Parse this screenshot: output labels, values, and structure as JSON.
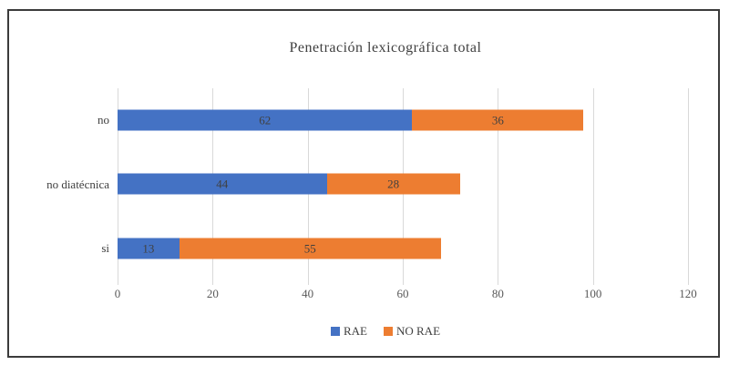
{
  "frame": {
    "border_color": "#3b3b3b",
    "background": "#ffffff"
  },
  "chart_data": {
    "type": "bar",
    "orientation": "horizontal",
    "stacked": true,
    "title": "Penetración lexicográfica total",
    "categories": [
      "no",
      "no diatécnica",
      "si"
    ],
    "series": [
      {
        "name": "RAE",
        "color": "#4472C4",
        "values": [
          62,
          44,
          13
        ]
      },
      {
        "name": "NO RAE",
        "color": "#ED7D31",
        "values": [
          36,
          28,
          55
        ]
      }
    ],
    "totals": [
      98,
      72,
      68
    ],
    "xlabel": "",
    "ylabel": "",
    "xlim": [
      0,
      120
    ],
    "x_ticks": [
      0,
      20,
      40,
      60,
      80,
      100,
      120
    ],
    "grid": true,
    "gridline_color": "#d9d9d9",
    "label_color": "#404040",
    "axis_label_color": "#595959",
    "legend_position": "bottom"
  }
}
